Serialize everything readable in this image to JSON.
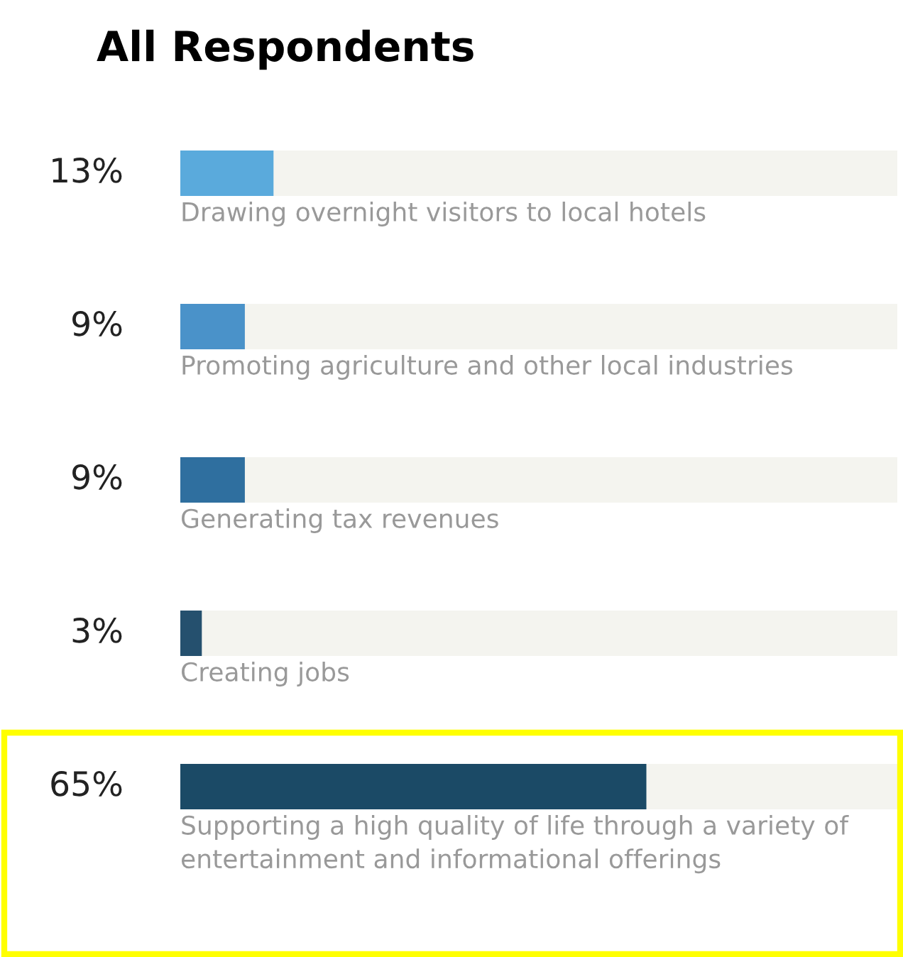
{
  "chart_data": {
    "type": "bar",
    "orientation": "horizontal",
    "title": "All Respondents",
    "categories": [
      "Drawing overnight visitors to local hotels",
      "Promoting agriculture and other local industries",
      "Generating tax revenues",
      "Creating jobs",
      "Supporting a high quality of life through a variety of entertainment and informational offerings"
    ],
    "values": [
      13,
      9,
      9,
      3,
      65
    ],
    "colors": [
      "#5aaadc",
      "#4a92c9",
      "#2f6f9f",
      "#25506e",
      "#1b4a66"
    ],
    "value_labels": [
      "13%",
      "9%",
      "9%",
      "3%",
      "65%"
    ],
    "xlim": [
      0,
      100
    ],
    "tick_labels": false,
    "legend": false
  }
}
